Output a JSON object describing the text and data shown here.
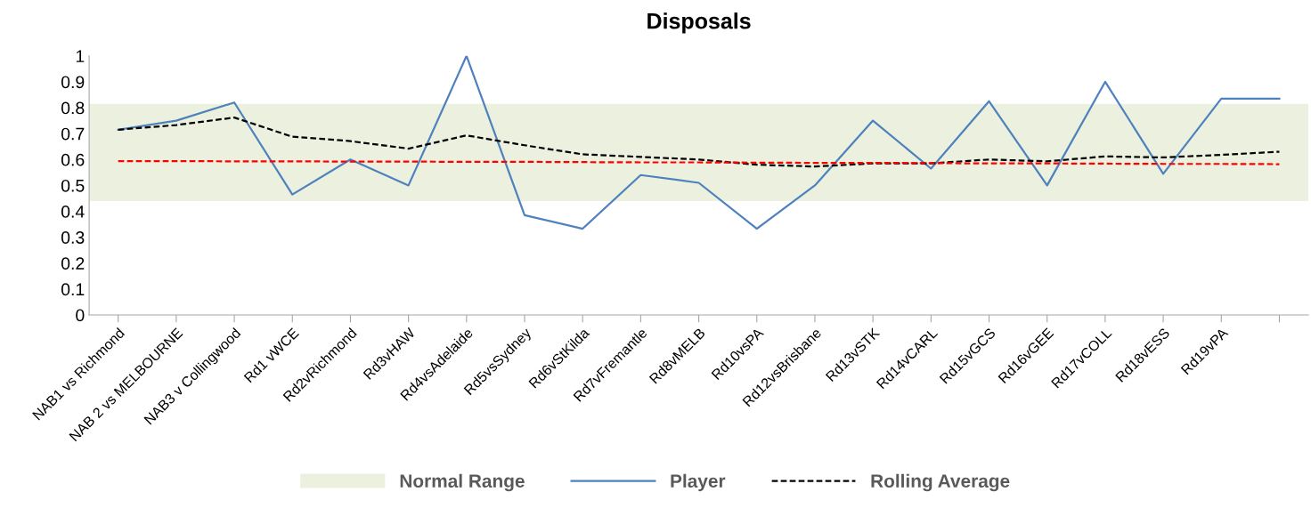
{
  "chart_data": {
    "type": "line",
    "title": "Disposals",
    "categories": [
      "NAB1 vs Richmond",
      "NAB 2 vs MELBOURNE",
      "NAB3 v Collingwood",
      "Rd1 vWCE",
      "Rd2vRichmond",
      "Rd3vHAW",
      "Rd4vsAdelaide",
      "Rd5vsSydney",
      "Rd6vStKilda",
      "Rd7vFremantle",
      "Rd8vMELB",
      "Rd10vsPA",
      "Rd12vsBrisbane",
      "Rd13vSTK",
      "Rd14vCARL",
      "Rd15vGCS",
      "Rd16vGEE",
      "Rd17vCOLL",
      "Rd18vESS",
      "Rd19vPA",
      null
    ],
    "series": [
      {
        "name": "Player",
        "color": "#4f81bd",
        "line_style": "solid",
        "values": [
          0.715,
          0.75,
          0.82,
          0.465,
          0.6,
          0.5,
          1.0,
          0.385,
          0.333,
          0.54,
          0.51,
          0.333,
          0.5,
          0.75,
          0.565,
          0.825,
          0.5,
          0.9,
          0.545,
          0.835,
          0.835
        ]
      },
      {
        "name": "Rolling Average",
        "color": "#000000",
        "line_style": "dashed",
        "values": [
          0.715,
          0.733,
          0.762,
          0.688,
          0.671,
          0.642,
          0.693,
          0.655,
          0.62,
          0.61,
          0.6,
          0.58,
          0.573,
          0.585,
          0.585,
          0.6,
          0.593,
          0.612,
          0.608,
          0.618,
          0.63
        ]
      },
      {
        "color": "#ff0000",
        "line_style": "dashed",
        "values": [
          0.594,
          0.594,
          0.593,
          0.593,
          0.592,
          0.592,
          0.591,
          0.591,
          0.59,
          0.589,
          0.589,
          0.588,
          0.587,
          0.587,
          0.586,
          0.585,
          0.585,
          0.584,
          0.583,
          0.583,
          0.582
        ]
      }
    ],
    "bands": [
      {
        "axis": "y",
        "from": 0.44,
        "to": 0.815,
        "label": "Normal Range",
        "color": "#ebf1de"
      }
    ],
    "ylim": [
      0,
      1
    ],
    "yticks": [
      0,
      0.1,
      0.2,
      0.3,
      0.4,
      0.5,
      0.6,
      0.7,
      0.8,
      0.9,
      1
    ],
    "grid": false,
    "legend": "bottom",
    "marker": "none"
  }
}
